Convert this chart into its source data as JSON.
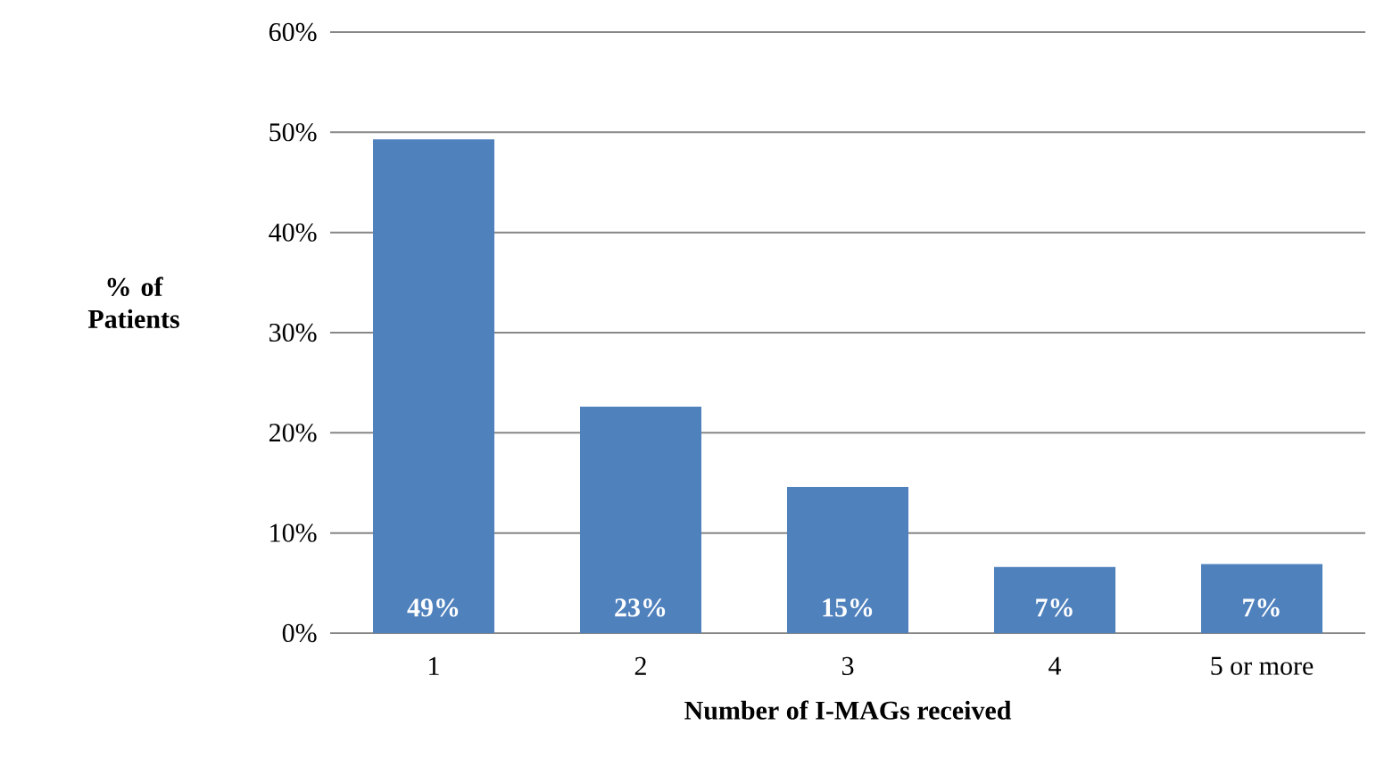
{
  "chart_data": {
    "type": "bar",
    "categories": [
      "1",
      "2",
      "3",
      "4",
      "5 or more"
    ],
    "values": [
      49.3,
      22.6,
      14.6,
      6.6,
      6.9
    ],
    "value_labels": [
      "49%",
      "23%",
      "15%",
      "7%",
      "7%"
    ],
    "color": "#4f81bd",
    "xlabel": "Number of I-MAGs received",
    "ylabel": "% of Patients",
    "ylim": [
      0,
      60
    ],
    "yticks": [
      {
        "value": 0,
        "label": "0%"
      },
      {
        "value": 10,
        "label": "10%"
      },
      {
        "value": 20,
        "label": "20%"
      },
      {
        "value": 30,
        "label": "30%"
      },
      {
        "value": 40,
        "label": "40%"
      },
      {
        "value": 50,
        "label": "50%"
      },
      {
        "value": 60,
        "label": "60%"
      }
    ],
    "grid": "y"
  }
}
